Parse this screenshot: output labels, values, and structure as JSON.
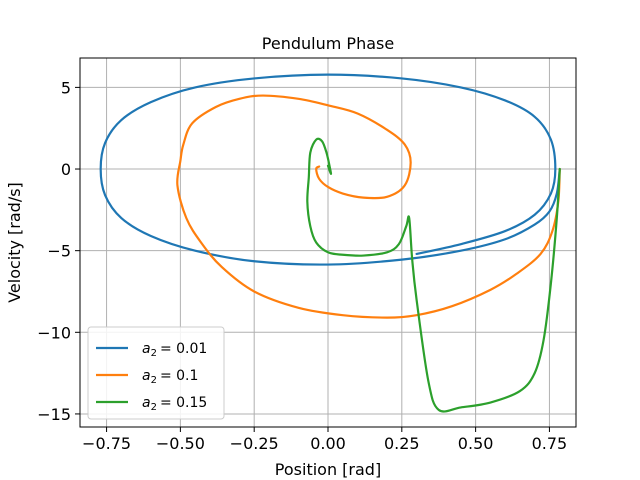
{
  "chart_data": {
    "type": "line",
    "title": "Pendulum Phase",
    "xlabel": "Position [rad]",
    "ylabel": "Velocity [rad/s]",
    "xlim": [
      -0.84,
      0.84
    ],
    "ylim": [
      -15.8,
      6.8
    ],
    "xticks": [
      -0.75,
      -0.5,
      -0.25,
      0.0,
      0.25,
      0.5,
      0.75
    ],
    "xtick_labels": [
      "−0.75",
      "−0.50",
      "−0.25",
      "0.00",
      "0.25",
      "0.50",
      "0.75"
    ],
    "yticks": [
      5,
      0,
      -5,
      -10,
      -15
    ],
    "ytick_labels": [
      "5",
      "0",
      "−5",
      "−10",
      "−15"
    ],
    "grid": true,
    "legend_position": "lower-left",
    "series": [
      {
        "name": "a2 = 0.01",
        "legend_var": "a",
        "legend_sub": "2",
        "legend_value": "= 0.01",
        "color": "#1f77b4",
        "points": [
          [
            0.785,
            0
          ],
          [
            0.775,
            -1.5
          ],
          [
            0.75,
            -2.6
          ],
          [
            0.7,
            -3.4
          ],
          [
            0.6,
            -4.3
          ],
          [
            0.45,
            -5.0
          ],
          [
            0.25,
            -5.55
          ],
          [
            0.0,
            -5.85
          ],
          [
            -0.25,
            -5.65
          ],
          [
            -0.45,
            -5.0
          ],
          [
            -0.6,
            -4.1
          ],
          [
            -0.7,
            -3.0
          ],
          [
            -0.755,
            -1.6
          ],
          [
            -0.77,
            0
          ],
          [
            -0.755,
            1.6
          ],
          [
            -0.7,
            3.0
          ],
          [
            -0.6,
            4.1
          ],
          [
            -0.45,
            5.0
          ],
          [
            -0.25,
            5.55
          ],
          [
            0.0,
            5.78
          ],
          [
            0.25,
            5.55
          ],
          [
            0.45,
            5.0
          ],
          [
            0.6,
            4.2
          ],
          [
            0.7,
            3.2
          ],
          [
            0.755,
            1.8
          ],
          [
            0.77,
            0
          ],
          [
            0.755,
            -1.5
          ],
          [
            0.7,
            -2.8
          ],
          [
            0.6,
            -3.8
          ],
          [
            0.45,
            -4.6
          ],
          [
            0.3,
            -5.2
          ]
        ]
      },
      {
        "name": "a2 = 0.1",
        "legend_var": "a",
        "legend_sub": "2",
        "legend_value": "= 0.1",
        "color": "#ff7f0e",
        "points": [
          [
            0.785,
            0
          ],
          [
            0.78,
            -2.0
          ],
          [
            0.76,
            -3.8
          ],
          [
            0.72,
            -5.2
          ],
          [
            0.64,
            -6.4
          ],
          [
            0.55,
            -7.4
          ],
          [
            0.42,
            -8.4
          ],
          [
            0.3,
            -8.95
          ],
          [
            0.2,
            -9.1
          ],
          [
            0.05,
            -8.95
          ],
          [
            -0.1,
            -8.5
          ],
          [
            -0.25,
            -7.5
          ],
          [
            -0.36,
            -6.0
          ],
          [
            -0.43,
            -4.5
          ],
          [
            -0.48,
            -3.0
          ],
          [
            -0.51,
            -1.0
          ],
          [
            -0.5,
            0.5
          ],
          [
            -0.49,
            1.5
          ],
          [
            -0.46,
            2.8
          ],
          [
            -0.38,
            3.8
          ],
          [
            -0.3,
            4.3
          ],
          [
            -0.22,
            4.5
          ],
          [
            -0.1,
            4.3
          ],
          [
            0.0,
            3.9
          ],
          [
            0.1,
            3.4
          ],
          [
            0.2,
            2.4
          ],
          [
            0.26,
            1.5
          ],
          [
            0.28,
            0.4
          ],
          [
            0.26,
            -1.0
          ],
          [
            0.2,
            -1.7
          ],
          [
            0.12,
            -1.75
          ],
          [
            0.05,
            -1.5
          ],
          [
            0.0,
            -1.1
          ],
          [
            -0.03,
            -0.6
          ],
          [
            -0.04,
            0.0
          ],
          [
            -0.03,
            0.15
          ]
        ]
      },
      {
        "name": "a2 = 0.15",
        "legend_var": "a",
        "legend_sub": "2",
        "legend_value": "= 0.15",
        "color": "#2ca02c",
        "points": [
          [
            0.785,
            0
          ],
          [
            0.775,
            -3.0
          ],
          [
            0.755,
            -7.0
          ],
          [
            0.73,
            -10.5
          ],
          [
            0.7,
            -12.5
          ],
          [
            0.65,
            -13.6
          ],
          [
            0.55,
            -14.3
          ],
          [
            0.45,
            -14.6
          ],
          [
            0.375,
            -14.75
          ],
          [
            0.34,
            -13.0
          ],
          [
            0.3,
            -8.0
          ],
          [
            0.285,
            -5.5
          ],
          [
            0.275,
            -3.0
          ],
          [
            0.265,
            -3.5
          ],
          [
            0.24,
            -4.6
          ],
          [
            0.2,
            -5.1
          ],
          [
            0.12,
            -5.3
          ],
          [
            0.05,
            -5.25
          ],
          [
            0.0,
            -5.1
          ],
          [
            -0.04,
            -4.5
          ],
          [
            -0.06,
            -3.5
          ],
          [
            -0.07,
            -2.0
          ],
          [
            -0.065,
            -0.5
          ],
          [
            -0.06,
            1.0
          ],
          [
            -0.04,
            1.8
          ],
          [
            -0.02,
            1.7
          ],
          [
            -0.005,
            1.0
          ],
          [
            0.005,
            0.2
          ],
          [
            0.01,
            -0.3
          ],
          [
            0.0,
            0.2
          ]
        ]
      }
    ]
  }
}
